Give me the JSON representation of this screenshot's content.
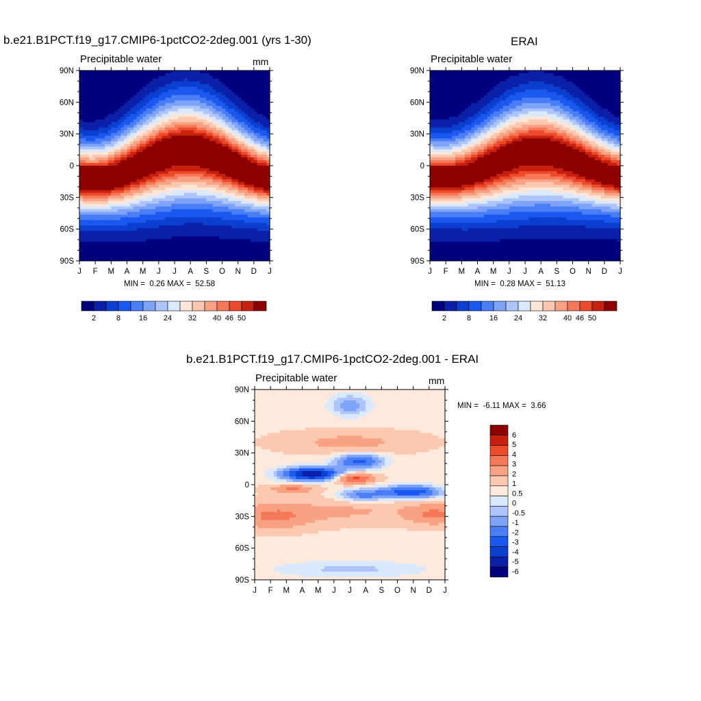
{
  "colors": {
    "abs_scale": [
      "#00007f",
      "#0a20a8",
      "#0b3fd0",
      "#1a58ef",
      "#4a7ef6",
      "#7ea3f8",
      "#aec5fb",
      "#dbe9fe",
      "#fee7d8",
      "#fcc8b0",
      "#f9a183",
      "#f57858",
      "#ec4a2a",
      "#c8200f",
      "#8c0000"
    ],
    "diff_scale": [
      "#00007f",
      "#0a20a8",
      "#0b3fd0",
      "#1a58ef",
      "#4a7ef6",
      "#7ea3f8",
      "#aec5fb",
      "#dbe9fe",
      "#feeadc",
      "#fcc8b0",
      "#f9a183",
      "#f57858",
      "#ec4a2a",
      "#c8200f",
      "#8c0000"
    ]
  },
  "chart_data": [
    {
      "type": "heatmap",
      "title": "b.e21.B1PCT.f19_g17.CMIP6-1pctCO2-2deg.001 (yrs 1-30)",
      "subtitle": "Precipitable water",
      "units": "mm",
      "x_tick_labels": [
        "J",
        "F",
        "M",
        "A",
        "M",
        "J",
        "J",
        "A",
        "S",
        "O",
        "N",
        "D",
        "J"
      ],
      "y_tick_labels": [
        "90N",
        "60N",
        "30N",
        "0",
        "30S",
        "60S",
        "90S"
      ],
      "y_range": [
        -90,
        90
      ],
      "min_label": "MIN =",
      "min_value": "0.26",
      "max_label": "MAX =",
      "max_value": "52.58",
      "colorbar_labels": [
        "2",
        "8",
        "16",
        "24",
        "32",
        "40",
        "46",
        "50"
      ],
      "params": {
        "equator_peak_lat_amp": 12,
        "peak_value": 52.58,
        "min_value": 0.26
      }
    },
    {
      "type": "heatmap",
      "title": "ERAI",
      "subtitle": "Precipitable water",
      "units": "mm",
      "x_tick_labels": [
        "J",
        "F",
        "M",
        "A",
        "M",
        "J",
        "J",
        "A",
        "S",
        "O",
        "N",
        "D",
        "J"
      ],
      "y_tick_labels": [
        "90N",
        "60N",
        "30N",
        "0",
        "30S",
        "60S",
        "90S"
      ],
      "y_range": [
        -90,
        90
      ],
      "min_label": "MIN =",
      "min_value": "0.28",
      "max_label": "MAX =",
      "max_value": "51.13",
      "colorbar_labels": [
        "2",
        "8",
        "16",
        "24",
        "32",
        "40",
        "46",
        "50"
      ],
      "params": {
        "equator_peak_lat_amp": 10,
        "peak_value": 51.13,
        "min_value": 0.28
      }
    },
    {
      "type": "heatmap",
      "title": "b.e21.B1PCT.f19_g17.CMIP6-1pctCO2-2deg.001 - ERAI",
      "subtitle": "Precipitable water",
      "units": "mm",
      "x_tick_labels": [
        "J",
        "F",
        "M",
        "A",
        "M",
        "J",
        "J",
        "A",
        "S",
        "O",
        "N",
        "D",
        "J"
      ],
      "y_tick_labels": [
        "90N",
        "60N",
        "30N",
        "0",
        "30S",
        "60S",
        "90S"
      ],
      "y_range": [
        -90,
        90
      ],
      "min_label": "MIN =",
      "min_value": "-6.11",
      "max_label": "MAX =",
      "max_value": "3.66",
      "colorbar_labels": [
        "6",
        "5",
        "4",
        "3",
        "2",
        "1",
        "0.5",
        "0",
        "-0.5",
        "-1",
        "-2",
        "-3",
        "-4",
        "-5",
        "-6"
      ]
    }
  ]
}
